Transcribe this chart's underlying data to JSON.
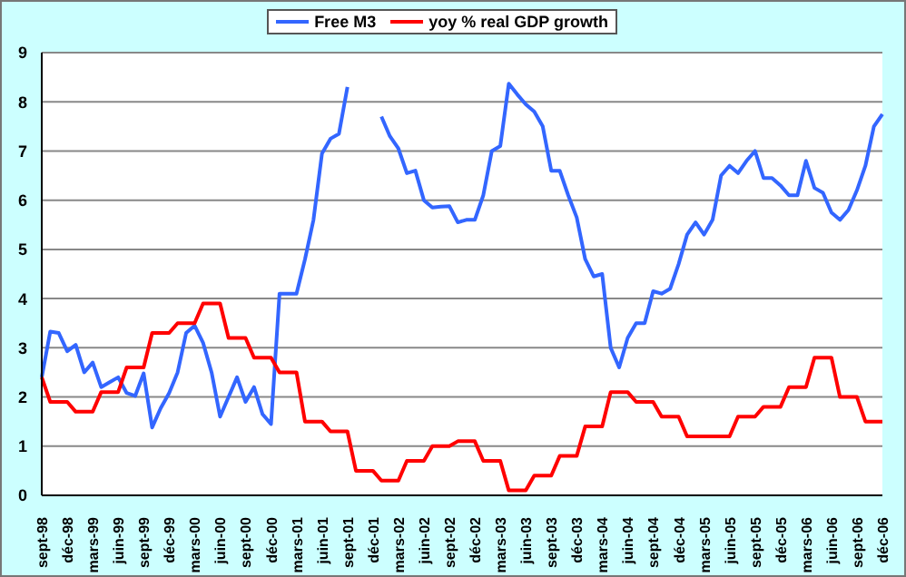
{
  "chart_data": {
    "type": "line",
    "categories": [
      "sept-98",
      null,
      null,
      "déc-98",
      null,
      null,
      "mars-99",
      null,
      null,
      "juin-99",
      null,
      null,
      "sept-99",
      null,
      null,
      "déc-99",
      null,
      null,
      "mars-00",
      null,
      null,
      "juin-00",
      null,
      null,
      "sept-00",
      null,
      null,
      "déc-00",
      null,
      null,
      "mars-01",
      null,
      null,
      "juin-01",
      null,
      null,
      "sept-01",
      null,
      null,
      "déc-01",
      null,
      null,
      "mars-02",
      null,
      null,
      "juin-02",
      null,
      null,
      "sept-02",
      null,
      null,
      "déc-02",
      null,
      null,
      "mars-03",
      null,
      null,
      "juin-03",
      null,
      null,
      "sept-03",
      null,
      null,
      "déc-03",
      null,
      null,
      "mars-04",
      null,
      null,
      "juin-04",
      null,
      null,
      "sept-04",
      null,
      null,
      "déc-04",
      null,
      null,
      "mars-05",
      null,
      null,
      "juin-05",
      null,
      null,
      "sept-05",
      null,
      null,
      "déc-05",
      null,
      null,
      "mars-06",
      null,
      null,
      "juin-06",
      null,
      null,
      "sept-06",
      null,
      null,
      "déc-06"
    ],
    "series": [
      {
        "name": "Free M3",
        "color": "#3366ff",
        "values": [
          2.4,
          3.33,
          3.3,
          2.93,
          3.06,
          2.5,
          2.7,
          2.2,
          2.3,
          2.4,
          2.08,
          2.02,
          2.48,
          1.38,
          1.77,
          2.08,
          2.5,
          3.3,
          3.45,
          3.1,
          2.5,
          1.6,
          2.0,
          2.4,
          1.9,
          2.2,
          1.65,
          1.45,
          4.1,
          4.1,
          4.1,
          4.8,
          5.6,
          6.95,
          7.25,
          7.35,
          8.3,
          null,
          null,
          null,
          7.7,
          7.3,
          7.05,
          6.55,
          6.6,
          6.0,
          5.85,
          5.87,
          5.88,
          5.55,
          5.6,
          5.6,
          6.1,
          7.0,
          7.1,
          8.37,
          8.15,
          7.95,
          7.8,
          7.5,
          6.6,
          6.6,
          6.1,
          5.65,
          4.8,
          4.45,
          4.5,
          3.0,
          2.6,
          3.2,
          3.5,
          3.5,
          4.15,
          4.1,
          4.2,
          4.7,
          5.3,
          5.55,
          5.3,
          5.6,
          6.5,
          6.7,
          6.55,
          6.8,
          7.0,
          6.45,
          6.45,
          6.3,
          6.1,
          6.1,
          6.8,
          6.25,
          6.15,
          5.75,
          5.6,
          5.8,
          6.2,
          6.7,
          7.5,
          7.75
        ]
      },
      {
        "name": "yoy % real GDP growth",
        "color": "#ff0000",
        "values": [
          2.4,
          1.9,
          1.9,
          1.9,
          1.7,
          1.7,
          1.7,
          2.1,
          2.1,
          2.1,
          2.6,
          2.6,
          2.6,
          3.3,
          3.3,
          3.3,
          3.5,
          3.5,
          3.5,
          3.9,
          3.9,
          3.9,
          3.2,
          3.2,
          3.2,
          2.8,
          2.8,
          2.8,
          2.5,
          2.5,
          2.5,
          1.5,
          1.5,
          1.5,
          1.3,
          1.3,
          1.3,
          0.5,
          0.5,
          0.5,
          0.3,
          0.3,
          0.3,
          0.7,
          0.7,
          0.7,
          1.0,
          1.0,
          1.0,
          1.1,
          1.1,
          1.1,
          0.7,
          0.7,
          0.7,
          0.1,
          0.1,
          0.1,
          0.4,
          0.4,
          0.4,
          0.8,
          0.8,
          0.8,
          1.4,
          1.4,
          1.4,
          2.1,
          2.1,
          2.1,
          1.9,
          1.9,
          1.9,
          1.6,
          1.6,
          1.6,
          1.2,
          1.2,
          1.2,
          1.2,
          1.2,
          1.2,
          1.6,
          1.6,
          1.6,
          1.8,
          1.8,
          1.8,
          2.2,
          2.2,
          2.2,
          2.8,
          2.8,
          2.8,
          2.0,
          2.0,
          2.0,
          1.5,
          1.5,
          1.5
        ]
      }
    ],
    "ylim": [
      0,
      9
    ],
    "yticks": [
      0,
      1,
      2,
      3,
      4,
      5,
      6,
      7,
      8,
      9
    ],
    "grid": "y",
    "legend": "top",
    "marker": "none"
  }
}
